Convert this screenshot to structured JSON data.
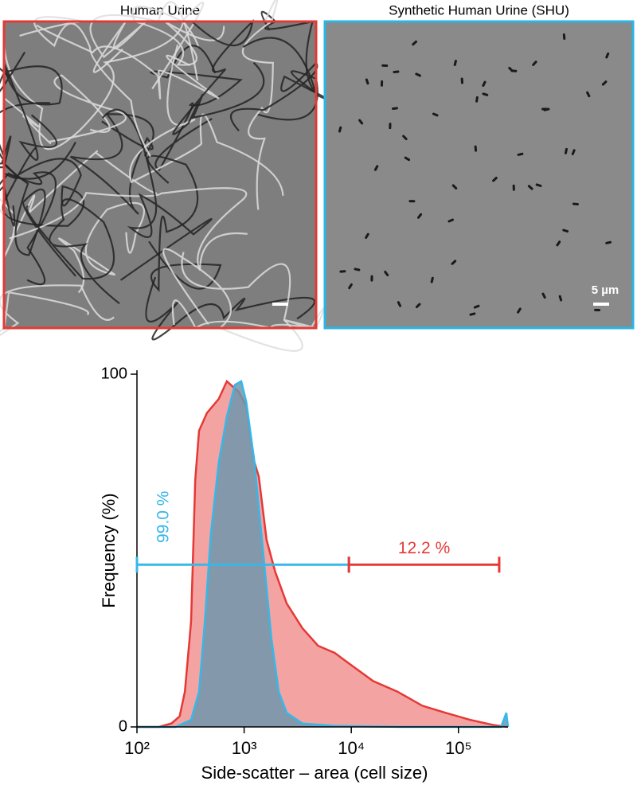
{
  "panels": [
    {
      "title": "Human Urine",
      "color": "#e53935"
    },
    {
      "title": "Synthetic Human Urine (SHU)",
      "color": "#29b6e6"
    }
  ],
  "scale_bar_label": "5 µm",
  "chart_data": {
    "type": "area",
    "xlabel": "Side-scatter – area (cell size)",
    "ylabel": "Frequency (%)",
    "log_x": true,
    "xlim": [
      100,
      290000
    ],
    "ylim": [
      0,
      100
    ],
    "xticks": [
      {
        "value": 100,
        "label": "10²"
      },
      {
        "value": 1000,
        "label": "10³"
      },
      {
        "value": 10000,
        "label": "10⁴"
      },
      {
        "value": 100000,
        "label": "10⁵"
      }
    ],
    "yticks": [
      0,
      100
    ],
    "series": [
      {
        "color": "#e53935",
        "fill": "#f4a3a3",
        "x": [
          100,
          160,
          210,
          250,
          280,
          310,
          320,
          350,
          380,
          450,
          580,
          690,
          890,
          1050,
          1250,
          1370,
          1620,
          1950,
          2500,
          3500,
          4900,
          7000,
          9500,
          16000,
          27000,
          46000,
          76000,
          128000,
          215000,
          290000
        ],
        "values": [
          0,
          0,
          1,
          3,
          10,
          25,
          30,
          70,
          84,
          89,
          93,
          98,
          95,
          91,
          75,
          71,
          53,
          44,
          35,
          28,
          23,
          21,
          18,
          13,
          10,
          6,
          4,
          2,
          0.5,
          0
        ]
      },
      {
        "color": "#36b8e8",
        "fill": "#6f97ad",
        "x": [
          100,
          230,
          320,
          380,
          430,
          490,
          580,
          690,
          820,
          940,
          1050,
          1250,
          1500,
          1800,
          2100,
          2500,
          3500,
          7000,
          30000,
          250000,
          280000,
          290000
        ],
        "values": [
          0,
          0,
          2,
          10,
          30,
          55,
          75,
          88,
          97,
          98,
          92,
          75,
          50,
          25,
          10,
          4,
          1,
          0.3,
          0,
          0,
          4,
          0
        ]
      }
    ],
    "annotations": [
      {
        "text": "99.0 %",
        "x": [
          100,
          9500
        ],
        "y": 46,
        "color": "#36b8e8"
      },
      {
        "text": "12.2 %",
        "x": [
          9500,
          240000
        ],
        "y": 46,
        "color": "#e53935"
      }
    ]
  }
}
